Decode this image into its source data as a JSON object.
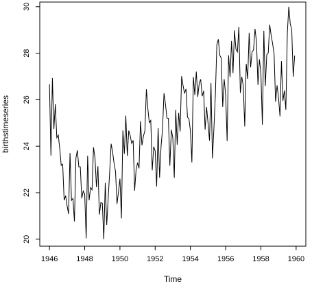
{
  "chart_data": {
    "type": "line",
    "xlabel": "Time",
    "ylabel": "birthstimeseries",
    "xlim": [
      1945.45,
      1960.55
    ],
    "ylim": [
      19.7,
      30.2
    ],
    "x_ticks": [
      1946,
      1948,
      1950,
      1952,
      1954,
      1956,
      1958,
      1960
    ],
    "x_tick_labels": [
      "1946",
      "1948",
      "1950",
      "1952",
      "1954",
      "1956",
      "1958",
      "1960"
    ],
    "y_ticks": [
      20,
      22,
      24,
      26,
      28,
      30
    ],
    "y_tick_labels": [
      "20",
      "22",
      "24",
      "26",
      "28",
      "30"
    ],
    "series": [
      {
        "x_start": 1946.0,
        "x_step": 0.08333333,
        "values": [
          26.663,
          23.598,
          26.931,
          24.74,
          25.806,
          24.364,
          24.477,
          23.901,
          23.175,
          23.227,
          21.672,
          21.87,
          21.439,
          21.089,
          23.709,
          21.669,
          21.752,
          20.761,
          23.479,
          23.824,
          23.105,
          23.11,
          21.759,
          22.073,
          21.937,
          20.035,
          23.59,
          21.672,
          22.222,
          22.123,
          23.95,
          23.504,
          22.238,
          23.142,
          21.059,
          21.573,
          21.548,
          20.0,
          22.424,
          20.615,
          21.761,
          22.874,
          24.104,
          23.748,
          23.262,
          22.907,
          21.519,
          22.025,
          22.604,
          20.894,
          24.677,
          23.673,
          25.32,
          23.583,
          24.671,
          24.454,
          24.122,
          24.252,
          22.084,
          22.991,
          23.287,
          23.049,
          25.076,
          24.037,
          24.43,
          24.667,
          26.451,
          25.618,
          25.014,
          25.11,
          22.964,
          23.981,
          23.798,
          22.27,
          24.775,
          22.646,
          23.988,
          24.737,
          26.276,
          25.816,
          25.21,
          25.199,
          23.162,
          24.707,
          24.364,
          22.644,
          25.565,
          24.062,
          25.431,
          24.635,
          27.009,
          26.606,
          26.268,
          26.462,
          25.246,
          25.18,
          24.657,
          23.304,
          26.982,
          26.199,
          27.21,
          26.122,
          26.706,
          26.878,
          26.152,
          26.379,
          24.712,
          25.688,
          24.99,
          24.239,
          26.721,
          23.475,
          24.767,
          26.219,
          28.361,
          28.599,
          27.914,
          27.784,
          25.693,
          26.881,
          26.217,
          24.218,
          27.914,
          26.975,
          28.527,
          27.139,
          28.982,
          28.169,
          28.056,
          29.136,
          26.291,
          26.987,
          26.589,
          24.848,
          27.543,
          26.896,
          28.878,
          27.39,
          28.065,
          28.141,
          29.048,
          28.484,
          26.634,
          27.735,
          27.132,
          24.924,
          28.963,
          26.589,
          27.931,
          28.009,
          29.229,
          28.759,
          28.405,
          27.945,
          25.912,
          26.619,
          26.076,
          25.286,
          27.66,
          25.951,
          26.398,
          25.565,
          28.865,
          30.0,
          29.261,
          29.012,
          26.992,
          27.897
        ]
      }
    ]
  }
}
